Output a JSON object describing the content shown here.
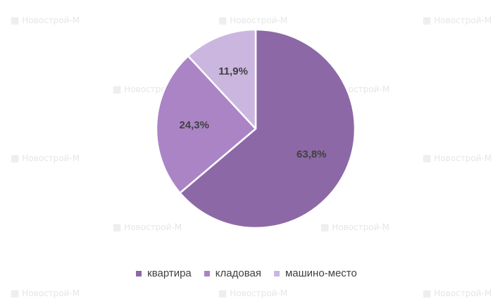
{
  "watermark": "Новострой-М",
  "colors": {
    "slice_1": "#8c69a6",
    "slice_2": "#ab84c6",
    "slice_3": "#cbb6df",
    "label_text": "#404040",
    "watermark_text": "#e6e6e6",
    "background": "#ffffff"
  },
  "chart_data": {
    "type": "pie",
    "start_angle_deg": 0,
    "direction": "clockwise",
    "legend_position": "bottom",
    "slices": [
      {
        "name": "квартира",
        "value": 63.8,
        "label": "63,8%"
      },
      {
        "name": "кладовая",
        "value": 24.3,
        "label": "24,3%"
      },
      {
        "name": "машино-место",
        "value": 11.9,
        "label": "11,9%"
      }
    ]
  }
}
